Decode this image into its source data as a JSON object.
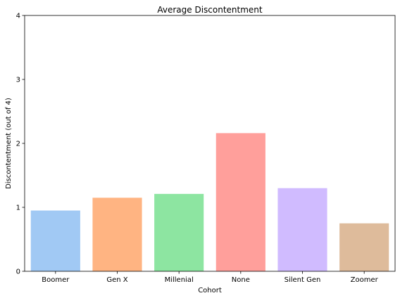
{
  "chart_data": {
    "type": "bar",
    "title": "Average Discontentment",
    "xlabel": "Cohort",
    "ylabel": "Discontentment (out of 4)",
    "ylim": [
      0,
      4
    ],
    "yticks": [
      0,
      1,
      2,
      3,
      4
    ],
    "categories": [
      "Boomer",
      "Gen X",
      "Millenial",
      "None",
      "Silent Gen",
      "Zoomer"
    ],
    "values": [
      0.95,
      1.15,
      1.21,
      2.16,
      1.3,
      0.75
    ],
    "colors": [
      "#a1c9f4",
      "#ffb482",
      "#8de5a1",
      "#ff9f9b",
      "#d0bbff",
      "#debb9b"
    ],
    "grid": false,
    "legend": "none"
  }
}
